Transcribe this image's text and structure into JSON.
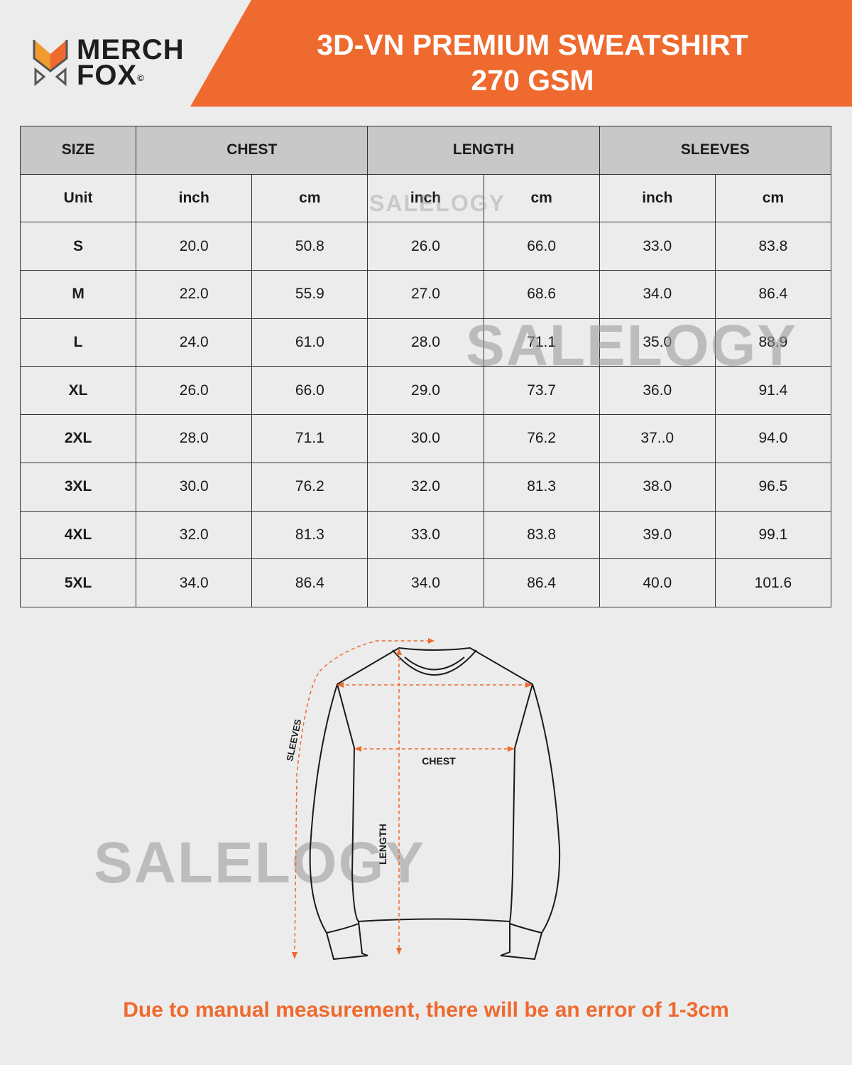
{
  "brand": {
    "name_line1": "MERCH",
    "name_line2": "FOX",
    "copyright": "©"
  },
  "header": {
    "title_line1": "3D-VN PREMIUM SWEATSHIRT",
    "title_line2": "270 GSM"
  },
  "colors": {
    "accent": "#ee6a2f",
    "header_bg": "#c8c8c8",
    "background": "#ececec"
  },
  "table": {
    "groups": [
      "SIZE",
      "CHEST",
      "LENGTH",
      "SLEEVES"
    ],
    "unit_row": [
      "Unit",
      "inch",
      "cm",
      "inch",
      "cm",
      "inch",
      "cm"
    ],
    "rows": [
      [
        "S",
        "20.0",
        "50.8",
        "26.0",
        "66.0",
        "33.0",
        "83.8"
      ],
      [
        "M",
        "22.0",
        "55.9",
        "27.0",
        "68.6",
        "34.0",
        "86.4"
      ],
      [
        "L",
        "24.0",
        "61.0",
        "28.0",
        "71.1",
        "35.0",
        "88.9"
      ],
      [
        "XL",
        "26.0",
        "66.0",
        "29.0",
        "73.7",
        "36.0",
        "91.4"
      ],
      [
        "2XL",
        "28.0",
        "71.1",
        "30.0",
        "76.2",
        "37..0",
        "94.0"
      ],
      [
        "3XL",
        "30.0",
        "76.2",
        "32.0",
        "81.3",
        "38.0",
        "96.5"
      ],
      [
        "4XL",
        "32.0",
        "81.3",
        "33.0",
        "83.8",
        "39.0",
        "99.1"
      ],
      [
        "5XL",
        "34.0",
        "86.4",
        "34.0",
        "86.4",
        "40.0",
        "101.6"
      ]
    ]
  },
  "diagram": {
    "sleeves_label": "SLEEVES",
    "chest_label": "CHEST",
    "length_label": "LENGTH"
  },
  "watermark": "SALELOGY",
  "footer_note": "Due to manual measurement, there will be an error of 1-3cm"
}
